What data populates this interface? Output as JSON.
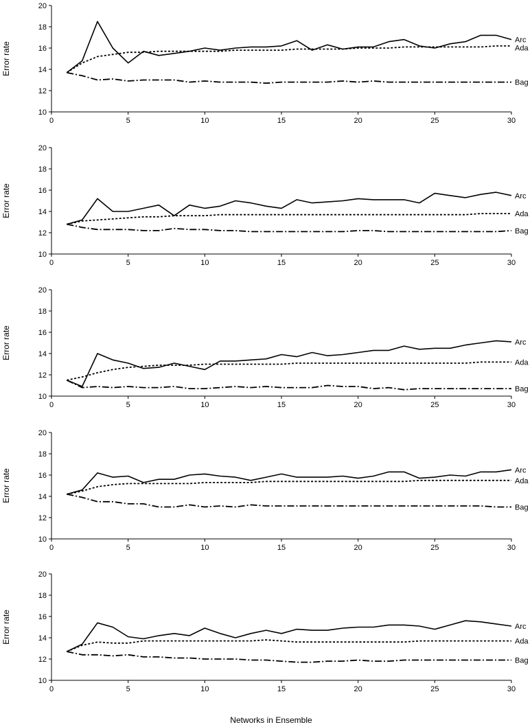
{
  "figure": {
    "xlabel": "Networks in Ensemble"
  },
  "chart_data": [
    {
      "type": "line",
      "title": "",
      "xlabel": "Networks in Ensemble",
      "ylabel": "Error rate",
      "xlim": [
        0,
        30
      ],
      "ylim": [
        10,
        20
      ],
      "xticks": [
        0,
        5,
        10,
        15,
        20,
        25,
        30
      ],
      "yticks": [
        10,
        12,
        14,
        16,
        18,
        20
      ],
      "grid": false,
      "x": [
        1,
        2,
        3,
        4,
        5,
        6,
        7,
        8,
        9,
        10,
        11,
        12,
        13,
        14,
        15,
        16,
        17,
        18,
        19,
        20,
        21,
        22,
        23,
        24,
        25,
        26,
        27,
        28,
        29,
        30
      ],
      "series": [
        {
          "name": "Arc",
          "style": "solid",
          "values": [
            13.7,
            14.8,
            18.5,
            16.0,
            14.6,
            15.7,
            15.3,
            15.5,
            15.7,
            16.0,
            15.8,
            16.0,
            16.1,
            16.1,
            16.2,
            16.7,
            15.8,
            16.3,
            15.9,
            16.1,
            16.1,
            16.6,
            16.8,
            16.2,
            16.0,
            16.4,
            16.6,
            17.2,
            17.2,
            16.8
          ]
        },
        {
          "name": "Ada",
          "style": "dotted",
          "values": [
            13.7,
            14.6,
            15.2,
            15.4,
            15.6,
            15.6,
            15.7,
            15.7,
            15.7,
            15.7,
            15.7,
            15.8,
            15.8,
            15.8,
            15.8,
            15.9,
            15.9,
            15.9,
            15.9,
            16.0,
            16.0,
            16.0,
            16.1,
            16.1,
            16.1,
            16.1,
            16.1,
            16.1,
            16.2,
            16.2
          ]
        },
        {
          "name": "Bag",
          "style": "dashdot",
          "values": [
            13.7,
            13.4,
            13.0,
            13.1,
            12.9,
            13.0,
            13.0,
            13.0,
            12.8,
            12.9,
            12.8,
            12.8,
            12.8,
            12.7,
            12.8,
            12.8,
            12.8,
            12.8,
            12.9,
            12.8,
            12.9,
            12.8,
            12.8,
            12.8,
            12.8,
            12.8,
            12.8,
            12.8,
            12.8,
            12.8
          ]
        }
      ]
    },
    {
      "type": "line",
      "title": "",
      "xlabel": "Networks in Ensemble",
      "ylabel": "Error rate",
      "xlim": [
        0,
        30
      ],
      "ylim": [
        10,
        20
      ],
      "xticks": [
        0,
        5,
        10,
        15,
        20,
        25,
        30
      ],
      "yticks": [
        10,
        12,
        14,
        16,
        18,
        20
      ],
      "grid": false,
      "x": [
        1,
        2,
        3,
        4,
        5,
        6,
        7,
        8,
        9,
        10,
        11,
        12,
        13,
        14,
        15,
        16,
        17,
        18,
        19,
        20,
        21,
        22,
        23,
        24,
        25,
        26,
        27,
        28,
        29,
        30
      ],
      "series": [
        {
          "name": "Arc",
          "style": "solid",
          "values": [
            12.8,
            13.2,
            15.2,
            14.0,
            14.0,
            14.3,
            14.6,
            13.6,
            14.6,
            14.3,
            14.5,
            15.0,
            14.8,
            14.5,
            14.3,
            15.1,
            14.8,
            14.9,
            15.0,
            15.2,
            15.1,
            15.1,
            15.1,
            14.8,
            15.7,
            15.5,
            15.3,
            15.6,
            15.8,
            15.5
          ]
        },
        {
          "name": "Ada",
          "style": "dotted",
          "values": [
            12.8,
            13.1,
            13.2,
            13.3,
            13.4,
            13.5,
            13.5,
            13.6,
            13.6,
            13.6,
            13.7,
            13.7,
            13.7,
            13.7,
            13.7,
            13.7,
            13.7,
            13.7,
            13.7,
            13.7,
            13.7,
            13.7,
            13.7,
            13.7,
            13.7,
            13.7,
            13.7,
            13.8,
            13.8,
            13.8
          ]
        },
        {
          "name": "Bag",
          "style": "dashdot",
          "values": [
            12.8,
            12.5,
            12.3,
            12.3,
            12.3,
            12.2,
            12.2,
            12.4,
            12.3,
            12.3,
            12.2,
            12.2,
            12.1,
            12.1,
            12.1,
            12.1,
            12.1,
            12.1,
            12.1,
            12.2,
            12.2,
            12.1,
            12.1,
            12.1,
            12.1,
            12.1,
            12.1,
            12.1,
            12.1,
            12.2
          ]
        }
      ]
    },
    {
      "type": "line",
      "title": "",
      "xlabel": "Networks in Ensemble",
      "ylabel": "Error rate",
      "xlim": [
        0,
        30
      ],
      "ylim": [
        10,
        20
      ],
      "xticks": [
        0,
        5,
        10,
        15,
        20,
        25,
        30
      ],
      "yticks": [
        10,
        12,
        14,
        16,
        18,
        20
      ],
      "grid": false,
      "x": [
        1,
        2,
        3,
        4,
        5,
        6,
        7,
        8,
        9,
        10,
        11,
        12,
        13,
        14,
        15,
        16,
        17,
        18,
        19,
        20,
        21,
        22,
        23,
        24,
        25,
        26,
        27,
        28,
        29,
        30
      ],
      "series": [
        {
          "name": "Arc",
          "style": "solid",
          "values": [
            11.5,
            10.9,
            14.0,
            13.4,
            13.1,
            12.6,
            12.7,
            13.1,
            12.8,
            12.5,
            13.3,
            13.3,
            13.4,
            13.5,
            13.9,
            13.7,
            14.1,
            13.8,
            13.9,
            14.1,
            14.3,
            14.3,
            14.7,
            14.4,
            14.5,
            14.5,
            14.8,
            15.0,
            15.2,
            15.1
          ]
        },
        {
          "name": "Ada",
          "style": "dotted",
          "values": [
            11.5,
            11.8,
            12.2,
            12.5,
            12.7,
            12.8,
            12.9,
            12.9,
            12.9,
            13.0,
            13.0,
            13.0,
            13.0,
            13.0,
            13.0,
            13.1,
            13.1,
            13.1,
            13.1,
            13.1,
            13.1,
            13.1,
            13.1,
            13.1,
            13.1,
            13.1,
            13.1,
            13.2,
            13.2,
            13.2
          ]
        },
        {
          "name": "Bag",
          "style": "dashdot",
          "values": [
            11.5,
            10.8,
            10.9,
            10.8,
            10.9,
            10.8,
            10.8,
            10.9,
            10.7,
            10.7,
            10.8,
            10.9,
            10.8,
            10.9,
            10.8,
            10.8,
            10.8,
            11.0,
            10.9,
            10.9,
            10.7,
            10.8,
            10.6,
            10.7,
            10.7,
            10.7,
            10.7,
            10.7,
            10.7,
            10.7
          ]
        }
      ]
    },
    {
      "type": "line",
      "title": "",
      "xlabel": "Networks in Ensemble",
      "ylabel": "Error rate",
      "xlim": [
        0,
        30
      ],
      "ylim": [
        10,
        20
      ],
      "xticks": [
        0,
        5,
        10,
        15,
        20,
        25,
        30
      ],
      "yticks": [
        10,
        12,
        14,
        16,
        18,
        20
      ],
      "grid": false,
      "x": [
        1,
        2,
        3,
        4,
        5,
        6,
        7,
        8,
        9,
        10,
        11,
        12,
        13,
        14,
        15,
        16,
        17,
        18,
        19,
        20,
        21,
        22,
        23,
        24,
        25,
        26,
        27,
        28,
        29,
        30
      ],
      "series": [
        {
          "name": "Arc",
          "style": "solid",
          "values": [
            14.2,
            14.6,
            16.2,
            15.8,
            15.9,
            15.3,
            15.6,
            15.6,
            16.0,
            16.1,
            15.9,
            15.8,
            15.5,
            15.8,
            16.1,
            15.8,
            15.8,
            15.8,
            15.9,
            15.7,
            15.9,
            16.3,
            16.3,
            15.7,
            15.8,
            16.0,
            15.9,
            16.3,
            16.3,
            16.5
          ]
        },
        {
          "name": "Ada",
          "style": "dotted",
          "values": [
            14.2,
            14.5,
            14.9,
            15.1,
            15.2,
            15.2,
            15.2,
            15.2,
            15.2,
            15.3,
            15.3,
            15.3,
            15.3,
            15.4,
            15.4,
            15.4,
            15.4,
            15.4,
            15.4,
            15.4,
            15.4,
            15.4,
            15.4,
            15.5,
            15.5,
            15.5,
            15.5,
            15.5,
            15.5,
            15.5
          ]
        },
        {
          "name": "Bag",
          "style": "dashdot",
          "values": [
            14.2,
            13.9,
            13.5,
            13.5,
            13.3,
            13.3,
            13.0,
            13.0,
            13.2,
            13.0,
            13.1,
            13.0,
            13.2,
            13.1,
            13.1,
            13.1,
            13.1,
            13.1,
            13.1,
            13.1,
            13.1,
            13.1,
            13.1,
            13.1,
            13.1,
            13.1,
            13.1,
            13.1,
            13.0,
            13.0
          ]
        }
      ]
    },
    {
      "type": "line",
      "title": "",
      "xlabel": "Networks in Ensemble",
      "ylabel": "Error rate",
      "xlim": [
        0,
        30
      ],
      "ylim": [
        10,
        20
      ],
      "xticks": [
        0,
        5,
        10,
        15,
        20,
        25,
        30
      ],
      "yticks": [
        10,
        12,
        14,
        16,
        18,
        20
      ],
      "grid": false,
      "x": [
        1,
        2,
        3,
        4,
        5,
        6,
        7,
        8,
        9,
        10,
        11,
        12,
        13,
        14,
        15,
        16,
        17,
        18,
        19,
        20,
        21,
        22,
        23,
        24,
        25,
        26,
        27,
        28,
        29,
        30
      ],
      "series": [
        {
          "name": "Arc",
          "style": "solid",
          "values": [
            12.7,
            13.4,
            15.4,
            15.0,
            14.1,
            13.9,
            14.2,
            14.4,
            14.2,
            14.9,
            14.4,
            14.0,
            14.4,
            14.7,
            14.4,
            14.8,
            14.7,
            14.7,
            14.9,
            15.0,
            15.0,
            15.2,
            15.2,
            15.1,
            14.8,
            15.2,
            15.6,
            15.5,
            15.3,
            15.1
          ]
        },
        {
          "name": "Ada",
          "style": "dotted",
          "values": [
            12.7,
            13.3,
            13.6,
            13.5,
            13.5,
            13.7,
            13.7,
            13.7,
            13.7,
            13.7,
            13.7,
            13.7,
            13.7,
            13.8,
            13.7,
            13.6,
            13.6,
            13.6,
            13.6,
            13.6,
            13.6,
            13.6,
            13.6,
            13.7,
            13.7,
            13.7,
            13.7,
            13.7,
            13.7,
            13.7
          ]
        },
        {
          "name": "Bag",
          "style": "dashdot",
          "values": [
            12.7,
            12.4,
            12.4,
            12.3,
            12.4,
            12.2,
            12.2,
            12.1,
            12.1,
            12.0,
            12.0,
            12.0,
            11.9,
            11.9,
            11.8,
            11.7,
            11.7,
            11.8,
            11.8,
            11.9,
            11.8,
            11.8,
            11.9,
            11.9,
            11.9,
            11.9,
            11.9,
            11.9,
            11.9,
            11.9
          ]
        }
      ]
    }
  ]
}
